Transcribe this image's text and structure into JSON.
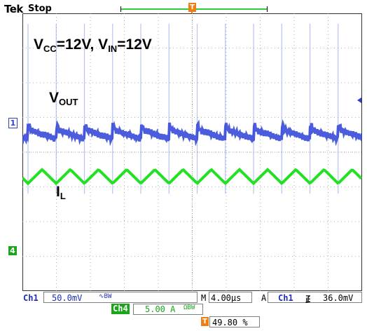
{
  "header": {
    "brand": "Tek",
    "status": "Stop",
    "trigger_flag": "T"
  },
  "screen": {
    "grid": {
      "h_divisions": 10,
      "v_divisions": 8
    },
    "annotations": {
      "conditions_vcc": "V",
      "conditions_vcc_sub": "CC",
      "conditions_mid": "=12V, V",
      "conditions_vin_sub": "IN",
      "conditions_end": "=12V",
      "vout": "V",
      "vout_sub": "OUT",
      "il": "I",
      "il_sub": "L"
    },
    "channel_markers": {
      "ch1": "1",
      "ch4": "4"
    },
    "colors": {
      "ch1": "#2b3fd6",
      "ch4": "#22e022",
      "grid": "#9a9a9a"
    }
  },
  "readouts": {
    "ch1": {
      "name": "Ch1",
      "scale": "50.0mV",
      "coupling": "∿BW"
    },
    "timebase": {
      "prefix": "M",
      "scale": "4.00µs"
    },
    "trigger": {
      "mode": "A",
      "source": "Ch1",
      "slope": "⺪",
      "level": "36.0mV"
    },
    "ch4": {
      "name": "Ch4",
      "scale": "5.00 A",
      "coupling": "ΩBW"
    },
    "trigger_position": {
      "flag": "T",
      "value": "49.80 %"
    }
  },
  "chart_data": {
    "type": "line",
    "x_unit": "divisions",
    "xlim": [
      0,
      10
    ],
    "ylim": [
      -4,
      4
    ],
    "series": [
      {
        "channel": "Ch1",
        "period_div": 0.83,
        "baseline_div": 0.5,
        "spike_div": 3.7,
        "color": "#2b3fd6"
      },
      {
        "channel": "Ch4",
        "period_div": 0.83,
        "min_div": -0.9,
        "max_div": -0.5,
        "color": "#22e022"
      }
    ]
  }
}
